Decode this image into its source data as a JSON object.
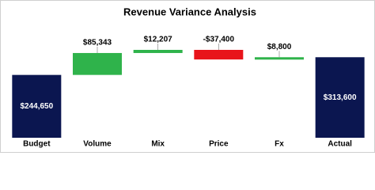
{
  "chart_data": {
    "type": "waterfall",
    "title": "Revenue Variance Analysis",
    "categories": [
      "Budget",
      "Volume",
      "Mix",
      "Price",
      "Fx",
      "Actual"
    ],
    "values": [
      244650,
      85343,
      12207,
      -37400,
      8800,
      313600
    ],
    "value_labels": [
      "$244,650",
      "$85,343",
      "$12,207",
      "-$37,400",
      "$8,800",
      "$313,600"
    ],
    "measure": [
      "total",
      "relative",
      "relative",
      "relative",
      "relative",
      "total"
    ],
    "total_color": "#0b1650",
    "increase_color": "#2fb34b",
    "decrease_color": "#e8141a"
  }
}
